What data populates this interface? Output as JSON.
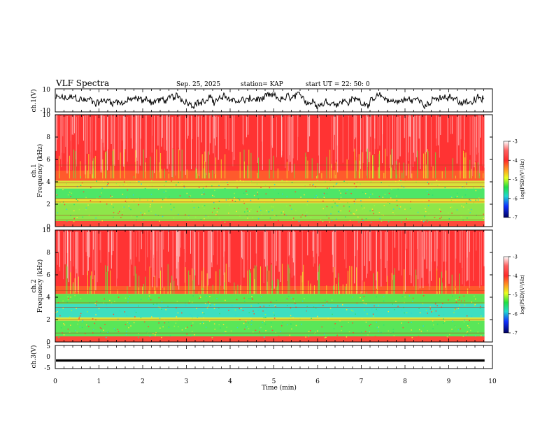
{
  "header": {
    "title": "VLF Spectra",
    "date": "Sep. 25, 2025",
    "station": "station= KAP",
    "start": "start  UT =   22: 50: 0"
  },
  "chart_data": [
    {
      "type": "line",
      "name": "ch1-waveform",
      "ylabel": "ch.1(V)",
      "ylim": [
        -10,
        10
      ],
      "yticks": [
        "10",
        "-10"
      ],
      "xlim": [
        0,
        10
      ],
      "line_color": "#000000"
    },
    {
      "type": "heatmap",
      "name": "ch1-spectrogram",
      "ylabel_top": "ch.1",
      "ylabel": "Frequency  (kHz)",
      "ylim": [
        0,
        10
      ],
      "yticks": [
        "0",
        "2",
        "4",
        "6",
        "8",
        "10"
      ],
      "xlim": [
        0,
        10
      ],
      "colorbar": {
        "label": "log(PSD)(V²/Hz)",
        "range": [
          -7,
          -3
        ],
        "ticks": [
          "-3",
          "-4",
          "-5",
          "-6",
          "-7"
        ]
      },
      "bands": [
        {
          "from": 0,
          "to": 0.5,
          "color": "#ff4a3a"
        },
        {
          "from": 0.5,
          "to": 2.1,
          "color": "#8ee64a"
        },
        {
          "from": 2.1,
          "to": 2.5,
          "color": "#e8e635"
        },
        {
          "from": 2.5,
          "to": 3.4,
          "color": "#4ee667"
        },
        {
          "from": 3.4,
          "to": 4.1,
          "color": "#d8e23a"
        },
        {
          "from": 4.1,
          "to": 5.0,
          "color": "#ff5a2c"
        },
        {
          "from": 5.0,
          "to": 10,
          "color": "#ff3333"
        }
      ],
      "lines_khz": [
        0.6,
        1.0,
        2.2,
        2.5,
        3.6,
        3.9,
        5.5
      ]
    },
    {
      "type": "heatmap",
      "name": "ch2-spectrogram",
      "ylabel_top": "ch.2",
      "ylabel": "Frequency  (kHz)",
      "ylim": [
        0,
        10
      ],
      "yticks": [
        "0",
        "2",
        "4",
        "6",
        "8",
        "10"
      ],
      "xlim": [
        0,
        10
      ],
      "colorbar": {
        "label": "log(PSD)(V²/Hz)",
        "range": [
          -7,
          -3
        ],
        "ticks": [
          "-3",
          "-4",
          "-5",
          "-6",
          "-7"
        ]
      },
      "bands": [
        {
          "from": 0,
          "to": 0.5,
          "color": "#ff4a3a"
        },
        {
          "from": 0.5,
          "to": 1.9,
          "color": "#5ae658"
        },
        {
          "from": 1.9,
          "to": 2.2,
          "color": "#d9e23a"
        },
        {
          "from": 2.2,
          "to": 3.4,
          "color": "#3ddfc0"
        },
        {
          "from": 3.4,
          "to": 4.3,
          "color": "#5fe34f"
        },
        {
          "from": 4.3,
          "to": 5.0,
          "color": "#ff5a2c"
        },
        {
          "from": 5.0,
          "to": 10,
          "color": "#ff3333"
        }
      ],
      "lines_khz": [
        0.8,
        2.0,
        3.1,
        3.5,
        4.6
      ]
    },
    {
      "type": "line",
      "name": "ch3-waveform",
      "ylabel": "ch.3(V)",
      "ylim": [
        -5,
        5
      ],
      "yticks": [
        "5",
        "0",
        "-5"
      ],
      "xlim": [
        0,
        10
      ],
      "xlabel": "Time  (min)",
      "xticks": [
        "0",
        "1",
        "2",
        "3",
        "4",
        "5",
        "6",
        "7",
        "8",
        "9",
        "10"
      ],
      "trace_band": [
        -1.0,
        -2.0
      ]
    }
  ]
}
